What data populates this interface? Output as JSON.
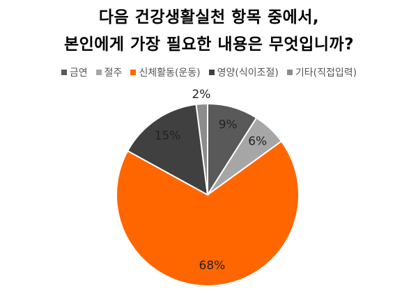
{
  "chart_data": {
    "type": "pie",
    "title": [
      "다음 건강생활실천 항목 중에서,",
      "본인에게 가장 필요한 내용은 무엇입니까?"
    ],
    "legend_position": "top",
    "categories": [
      "금연",
      "절주",
      "신체활동(운동)",
      "영양(식이조절)",
      "기타(직접입력)"
    ],
    "values": [
      9,
      6,
      68,
      15,
      2
    ],
    "labels": [
      "9%",
      "6%",
      "68%",
      "15%",
      "2%"
    ],
    "colors": [
      "#595959",
      "#a6a6a6",
      "#ff6600",
      "#404040",
      "#8c8c8c"
    ]
  }
}
